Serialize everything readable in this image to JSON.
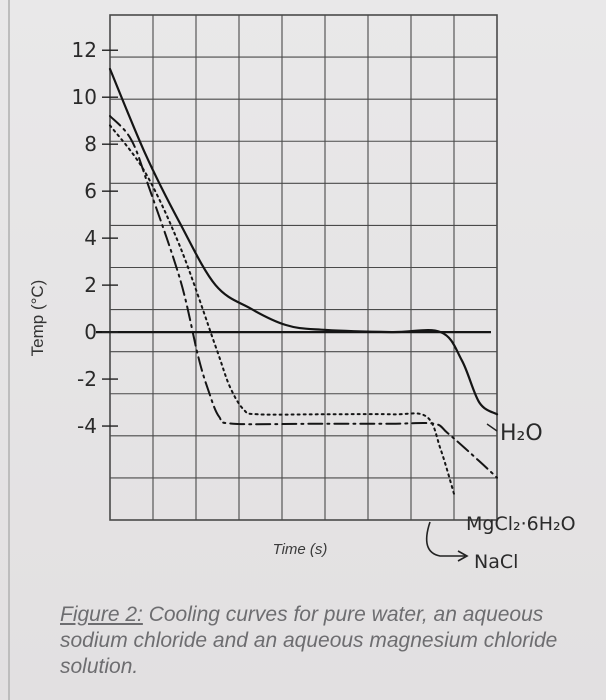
{
  "chart_data": {
    "type": "line",
    "ylabel": "Temp (°C)",
    "xlabel": "Time (s)",
    "ylim": [
      -8,
      13.5
    ],
    "yticks": [
      "12",
      "10",
      "8",
      "6",
      "4",
      "2",
      "0",
      "-2",
      "-4"
    ],
    "grid": true,
    "series": [
      {
        "name": "H₂O",
        "style": "solid",
        "points": [
          [
            0,
            11.2
          ],
          [
            1,
            7.6
          ],
          [
            2,
            4.6
          ],
          [
            3,
            2.0
          ],
          [
            4,
            1.0
          ],
          [
            5,
            0.3
          ],
          [
            6,
            0.1
          ],
          [
            8,
            0.0
          ],
          [
            9.4,
            0.0
          ],
          [
            10,
            -1.2
          ],
          [
            10.5,
            -3.0
          ],
          [
            11,
            -3.5
          ]
        ]
      },
      {
        "name": "MgCl₂·6H₂O",
        "style": "dash-dot",
        "points": [
          [
            0,
            9.2
          ],
          [
            0.6,
            8.2
          ],
          [
            1.1,
            6.2
          ],
          [
            2.0,
            2.2
          ],
          [
            2.5,
            -1.0
          ],
          [
            2.8,
            -2.5
          ],
          [
            3.1,
            -3.6
          ],
          [
            3.5,
            -3.9
          ],
          [
            6,
            -3.9
          ],
          [
            8,
            -3.9
          ],
          [
            9.2,
            -3.9
          ],
          [
            9.6,
            -4.3
          ],
          [
            10.5,
            -5.5
          ],
          [
            11,
            -6.2
          ]
        ]
      },
      {
        "name": "NaCl",
        "style": "dotted",
        "points": [
          [
            0,
            8.8
          ],
          [
            1,
            6.8
          ],
          [
            2,
            3.6
          ],
          [
            3,
            -0.6
          ],
          [
            3.4,
            -2.3
          ],
          [
            3.8,
            -3.3
          ],
          [
            4.2,
            -3.5
          ],
          [
            6,
            -3.5
          ],
          [
            8,
            -3.5
          ],
          [
            9.0,
            -3.6
          ],
          [
            9.4,
            -5.0
          ],
          [
            9.8,
            -7.0
          ]
        ]
      }
    ]
  },
  "caption": {
    "figure_label": "Figure 2:",
    "text": " Cooling curves for pure water, an aqueous sodium chloride and an aqueous magnesium chloride solution."
  },
  "colors": {
    "grid": "#4a4a4a",
    "line": "#151515",
    "caption": "#6d6d70"
  }
}
